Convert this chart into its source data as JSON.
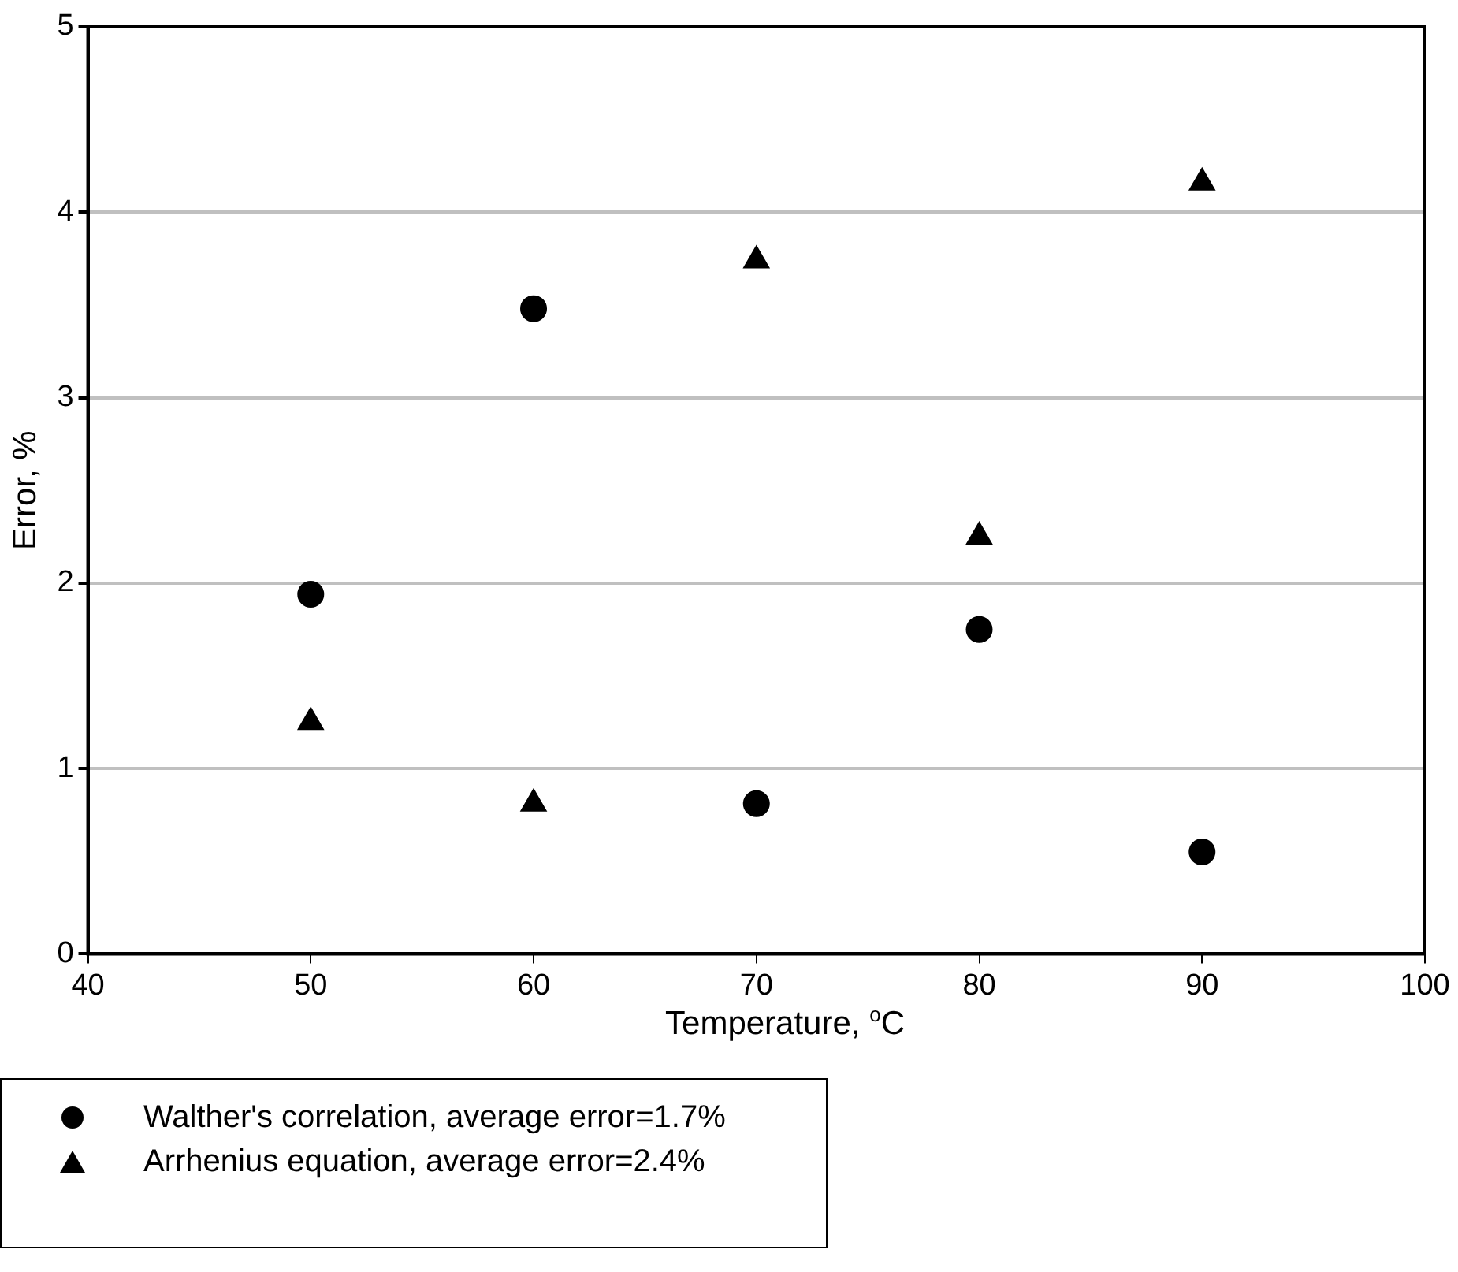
{
  "chart_data": {
    "type": "scatter",
    "xlabel": "Temperature, $^{o}$C",
    "ylabel": "Error, %",
    "x": [
      50,
      60,
      70,
      80,
      90
    ],
    "series": [
      {
        "name": "Walther's correlation, average error=1.7%",
        "color": "#000000",
        "marker": "circle",
        "values": [
          1.94,
          3.48,
          0.81,
          1.75,
          0.55
        ]
      },
      {
        "name": "Arrhenius equation, average error=2.4%",
        "color": "#000000",
        "marker": "triangle",
        "values": [
          1.25,
          0.81,
          3.74,
          2.25,
          4.16
        ]
      }
    ],
    "xlim": [
      40,
      100
    ],
    "xticks": [
      40,
      50,
      60,
      70,
      80,
      90,
      100
    ],
    "ylim": [
      0,
      5
    ],
    "yticks": [
      0,
      1,
      2,
      3,
      4,
      5
    ],
    "grid": "y",
    "legend": "bottom left"
  }
}
